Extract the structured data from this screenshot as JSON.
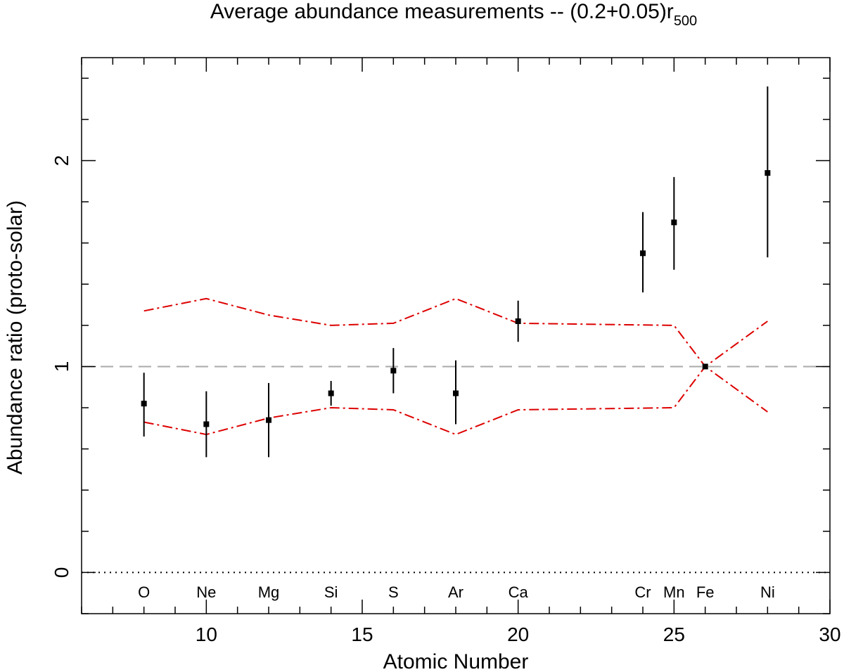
{
  "chart_data": {
    "type": "scatter",
    "title": "Average abundance measurements -- (0.2+0.05)r",
    "title_subscript": "500",
    "xlabel": "Atomic Number",
    "ylabel": "Abundance ratio (proto-solar)",
    "xlim": [
      6,
      30
    ],
    "ylim": [
      -0.2,
      2.5
    ],
    "xticks": [
      10,
      15,
      20,
      25,
      30
    ],
    "xtick_labels": [
      "10",
      "15",
      "20",
      "25",
      "30"
    ],
    "yticks": [
      0,
      1,
      2
    ],
    "ytick_labels": [
      "0",
      "1",
      "2"
    ],
    "x_minor_step": 1,
    "y_minor_step": 0.2,
    "reference_lines": [
      {
        "name": "solar",
        "y": 1,
        "style": "dashed",
        "color": "#aaaaaa"
      },
      {
        "name": "zero",
        "y": 0,
        "style": "dotted",
        "color": "#000000"
      }
    ],
    "points": [
      {
        "element": "O",
        "z": 8,
        "y": 0.82,
        "lo": 0.66,
        "hi": 0.97
      },
      {
        "element": "Ne",
        "z": 10,
        "y": 0.72,
        "lo": 0.56,
        "hi": 0.88
      },
      {
        "element": "Mg",
        "z": 12,
        "y": 0.74,
        "lo": 0.56,
        "hi": 0.92
      },
      {
        "element": "Si",
        "z": 14,
        "y": 0.87,
        "lo": 0.81,
        "hi": 0.93
      },
      {
        "element": "S",
        "z": 16,
        "y": 0.98,
        "lo": 0.87,
        "hi": 1.09
      },
      {
        "element": "Ar",
        "z": 18,
        "y": 0.87,
        "lo": 0.72,
        "hi": 1.03
      },
      {
        "element": "Ca",
        "z": 20,
        "y": 1.22,
        "lo": 1.12,
        "hi": 1.32
      },
      {
        "element": "Cr",
        "z": 24,
        "y": 1.55,
        "lo": 1.36,
        "hi": 1.75
      },
      {
        "element": "Mn",
        "z": 25,
        "y": 1.7,
        "lo": 1.47,
        "hi": 1.92
      },
      {
        "element": "Fe",
        "z": 26,
        "y": 1.0,
        "lo": 0.99,
        "hi": 1.01
      },
      {
        "element": "Ni",
        "z": 28,
        "y": 1.94,
        "lo": 1.53,
        "hi": 2.36
      }
    ],
    "element_labels": [
      {
        "label": "O",
        "z": 8
      },
      {
        "label": "Ne",
        "z": 10
      },
      {
        "label": "Mg",
        "z": 12
      },
      {
        "label": "Si",
        "z": 14
      },
      {
        "label": "S",
        "z": 16
      },
      {
        "label": "Ar",
        "z": 18
      },
      {
        "label": "Ca",
        "z": 20
      },
      {
        "label": "Cr",
        "z": 24
      },
      {
        "label": "Mn",
        "z": 25
      },
      {
        "label": "Fe",
        "z": 26
      },
      {
        "label": "Ni",
        "z": 28
      }
    ],
    "envelope": {
      "color": "#dd0000",
      "style": "dash-dot",
      "upper": [
        [
          8,
          1.27
        ],
        [
          10,
          1.33
        ],
        [
          12,
          1.25
        ],
        [
          14,
          1.2
        ],
        [
          16,
          1.21
        ],
        [
          18,
          1.33
        ],
        [
          20,
          1.21
        ],
        [
          25,
          1.2
        ],
        [
          26,
          1.0
        ],
        [
          28,
          1.22
        ]
      ],
      "lower": [
        [
          8,
          0.73
        ],
        [
          10,
          0.67
        ],
        [
          12,
          0.75
        ],
        [
          14,
          0.8
        ],
        [
          16,
          0.79
        ],
        [
          18,
          0.67
        ],
        [
          20,
          0.79
        ],
        [
          25,
          0.8
        ],
        [
          26,
          1.0
        ],
        [
          28,
          0.78
        ]
      ]
    }
  }
}
